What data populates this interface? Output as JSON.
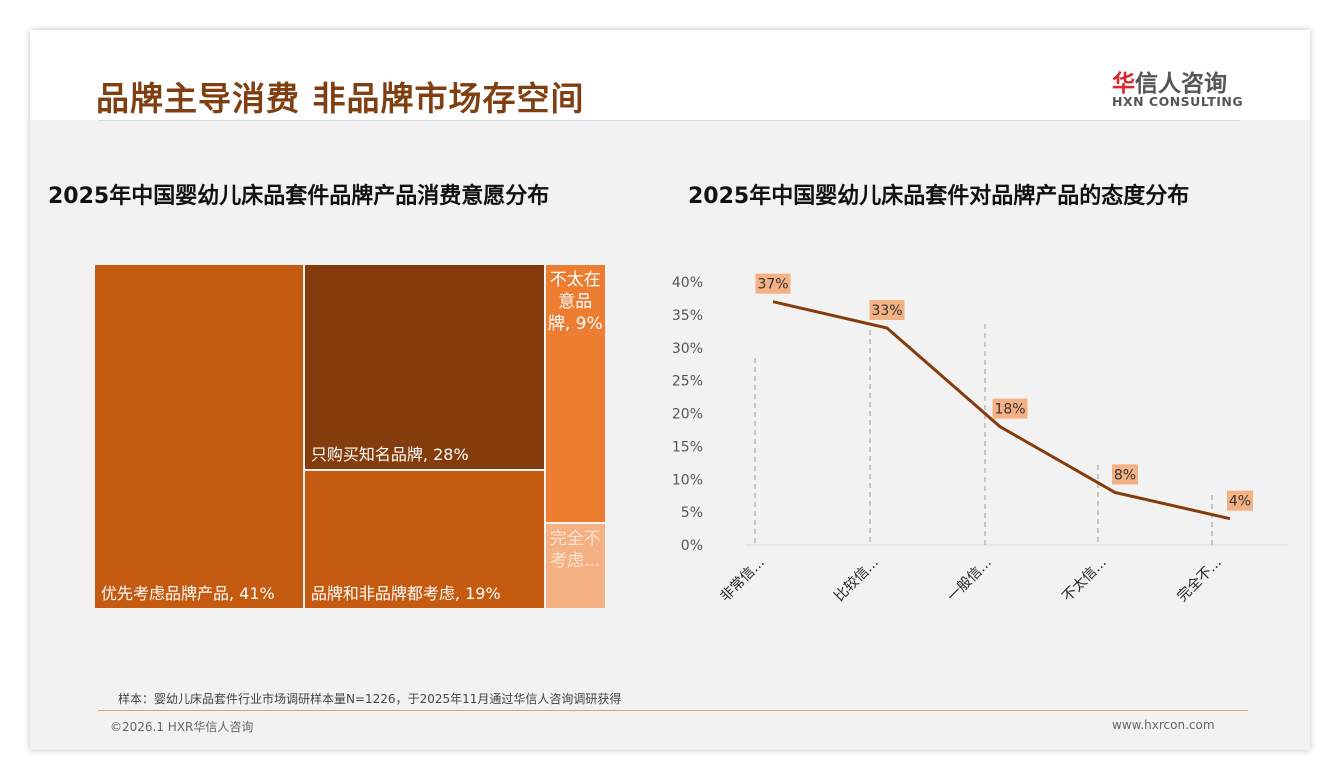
{
  "header": {
    "title": "品牌主导消费 非品牌市场存空间",
    "logo_cn_red": "华",
    "logo_cn": "信人咨询",
    "logo_en": "HXN CONSULTING"
  },
  "chart_data": [
    {
      "type": "treemap",
      "title": "2025年中国婴幼儿床品套件品牌产品消费意愿分布",
      "items": [
        {
          "label": "优先考虑品牌产品, 41%",
          "name": "优先考虑品牌产品",
          "value": 41,
          "color": "#c55a11"
        },
        {
          "label": "只购买知名品牌, 28%",
          "name": "只购买知名品牌",
          "value": 28,
          "color": "#843c0c"
        },
        {
          "label": "品牌和非品牌都考虑, 19%",
          "name": "品牌和非品牌都考虑",
          "value": 19,
          "color": "#c55a11"
        },
        {
          "label": "不太在意品牌, 9%",
          "name": "不太在意品牌",
          "value": 9,
          "color": "#ed7d31"
        },
        {
          "label": "完全不考虑...",
          "name": "完全不考虑",
          "value": 3,
          "color": "#f4b183"
        }
      ]
    },
    {
      "type": "line",
      "title": "2025年中国婴幼儿床品套件对品牌产品的态度分布",
      "categories": [
        "非常信...",
        "比较信...",
        "一般信...",
        "不太信...",
        "完全不..."
      ],
      "values": [
        37,
        33,
        18,
        8,
        4
      ],
      "labels": [
        "37%",
        "33%",
        "18%",
        "8%",
        "4%"
      ],
      "ylim": [
        0,
        40
      ],
      "yticks": [
        "0%",
        "5%",
        "10%",
        "15%",
        "20%",
        "25%",
        "30%",
        "35%",
        "40%"
      ],
      "color": "#843c0c"
    }
  ],
  "footer": {
    "note": "样本：婴幼儿床品套件行业市场调研样本量N=1226，于2025年11月通过华信人咨询调研获得",
    "copyright": "©2026.1 HXR华信人咨询",
    "url": "www.hxrcon.com"
  }
}
